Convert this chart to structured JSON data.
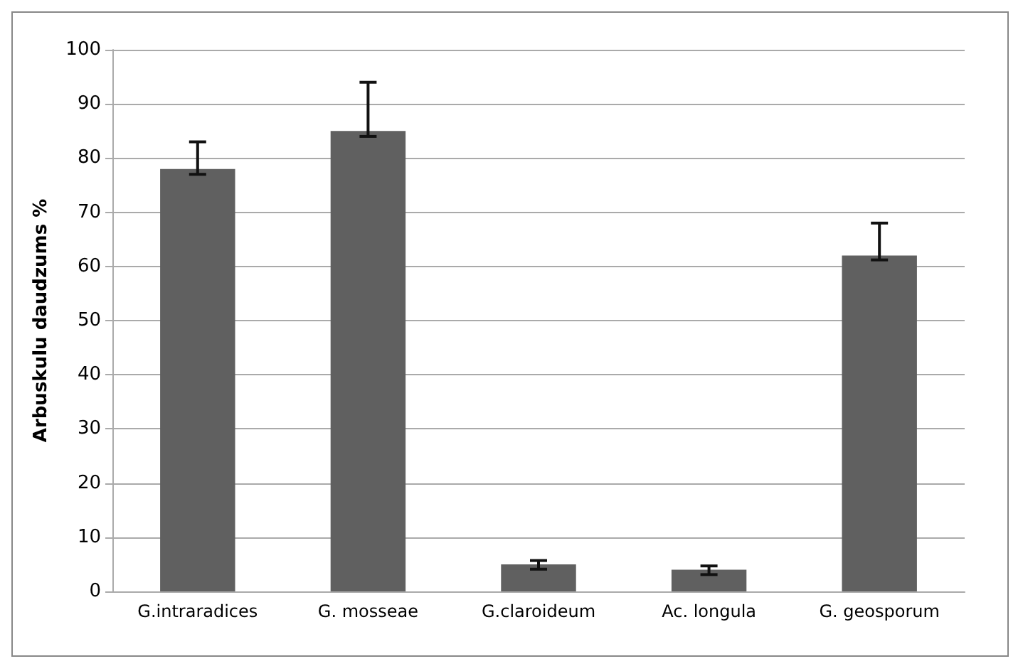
{
  "chart_data": {
    "type": "bar",
    "ylabel": "Arbuskulu daudzums %",
    "categories": [
      "G.intraradices",
      "G. mosseae",
      "G.claroideum",
      "Ac. longula",
      "G. geosporum"
    ],
    "values": [
      78,
      85,
      5,
      4,
      62
    ],
    "color": "#606060",
    "errors": [
      [
        77,
        83
      ],
      [
        84,
        94
      ],
      [
        4.1,
        5.7
      ],
      [
        3.1,
        4.7
      ],
      [
        61.2,
        68
      ]
    ],
    "ylim": [
      0,
      100
    ],
    "yticks": [
      0,
      10,
      20,
      30,
      40,
      50,
      60,
      70,
      80,
      90,
      100
    ],
    "grid": "y"
  }
}
